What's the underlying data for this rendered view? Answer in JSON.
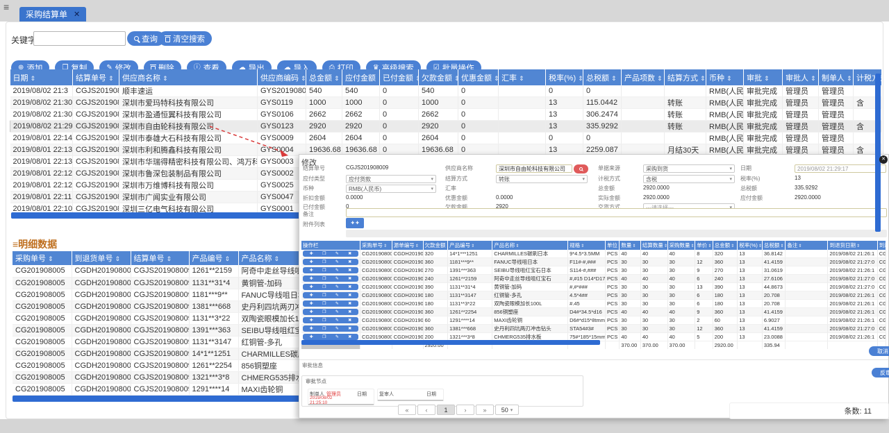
{
  "icons": {
    "sort": "⇕",
    "hamburger": "≡",
    "tab_close": "✕",
    "modal_close": "✕",
    "caret": "▾",
    "detail_prefix": "≡",
    "attach_plus": "✚ ✚",
    "op": [
      {
        "name": "row-add-icon",
        "glyph": "✚"
      },
      {
        "name": "row-copy-icon",
        "glyph": "❐"
      },
      {
        "name": "row-edit-icon",
        "glyph": "✎"
      },
      {
        "name": "row-delete-icon",
        "glyph": "✖"
      }
    ]
  },
  "colors": {
    "accent_blue": "#4a80d4",
    "header_blue": "#5186d3",
    "scrollbar_blue": "#2e6bd2",
    "title_orange": "#bf6f1f",
    "alert_red": "#e03c3c"
  },
  "tab": {
    "title": "采购结算单"
  },
  "search": {
    "keyword_label": "关键字",
    "keyword_value": "",
    "query_label": "查询",
    "clear_label": "清空搜索"
  },
  "toolbar": {
    "buttons": [
      {
        "name": "add-button",
        "icon": "plus-circle-icon",
        "glyph": "⊕",
        "label": "添加"
      },
      {
        "name": "copy-button",
        "icon": "copy-icon",
        "glyph": "❐",
        "label": "复制"
      },
      {
        "name": "edit-button",
        "icon": "pencil-icon",
        "glyph": "✎",
        "label": "修改"
      },
      {
        "name": "delete-button",
        "icon": "trash-icon",
        "glyph": "",
        "label": "删除"
      },
      {
        "name": "view-button",
        "icon": "info-icon",
        "glyph": "ⓘ",
        "label": "查看"
      },
      {
        "name": "export-button",
        "icon": "cloud-export-icon",
        "glyph": "☁",
        "label": "导出"
      },
      {
        "name": "import-button",
        "icon": "cloud-import-icon",
        "glyph": "☁",
        "label": "导入"
      },
      {
        "name": "print-button",
        "icon": "printer-icon",
        "glyph": "⎙",
        "label": "打印"
      },
      {
        "name": "advanced-search-button",
        "icon": "crown-icon",
        "glyph": "♛",
        "label": "高级搜索"
      },
      {
        "name": "batch-button",
        "icon": "circle-check-icon",
        "glyph": "☑",
        "label": "批量操作"
      }
    ]
  },
  "main_table": {
    "columns": [
      "日期",
      "结算单号",
      "供应商名称",
      "供应商编码",
      "总金额",
      "应付金额",
      "已付金额",
      "欠款金额",
      "优惠金额",
      "汇率",
      "税率(%)",
      "总税额",
      "产品项数",
      "结算方式",
      "币种",
      "审批",
      "审批人",
      "制单人",
      "计税方式"
    ],
    "rows": [
      [
        "2019/08/02 21:3",
        "CGJS201908012",
        "顺丰速运",
        "GYS20190800",
        "540",
        "540",
        "0",
        "540",
        "0",
        "",
        "0",
        "0",
        "",
        "",
        "RMB(人民币",
        "审批完成",
        "管理员",
        "管理员",
        ""
      ],
      [
        "2019/08/02 21:30",
        "CGJS201908011",
        "深圳市爱玛特科技有限公司",
        "GYS0119",
        "1000",
        "1000",
        "0",
        "1000",
        "0",
        "",
        "13",
        "115.0442",
        "",
        "转账",
        "RMB(人民币",
        "审批完成",
        "管理员",
        "管理员",
        "含"
      ],
      [
        "2019/08/02 21:30",
        "CGJS201908010",
        "深圳市盈通恒翼科技有限公司",
        "GYS0106",
        "2662",
        "2662",
        "0",
        "2662",
        "0",
        "",
        "13",
        "306.2474",
        "",
        "转账",
        "RMB(人民币",
        "审批完成",
        "管理员",
        "管理员",
        ""
      ],
      [
        "2019/08/02 21:29",
        "CGJS201908009",
        "深圳市自由轮科技有限公司",
        "GYS0123",
        "2920",
        "2920",
        "0",
        "2920",
        "0",
        "",
        "13",
        "335.9292",
        "",
        "转账",
        "RMB(人民币",
        "审批完成",
        "管理员",
        "管理员",
        "含"
      ],
      [
        "2019/08/01 22:14",
        "CGJS201908008",
        "深圳市泰雄大石科技有限公司",
        "GYS0009",
        "2604",
        "2604",
        "0",
        "2604",
        "0",
        "",
        "0",
        "0",
        "",
        "",
        "RMB(人民币",
        "审批完成",
        "管理员",
        "管理员",
        ""
      ],
      [
        "2019/08/01 22:13",
        "CGJS201908007",
        "深圳市利和腾鑫科技有限公司",
        "GYS0004",
        "19636.68",
        "19636.68",
        "0",
        "19636.68",
        "0",
        "",
        "13",
        "2259.087",
        "",
        "月结30天",
        "RMB(人民币",
        "审批完成",
        "管理员",
        "管理员",
        "含"
      ],
      [
        "2019/08/01 22:13",
        "CGJS201908006",
        "深圳市华瑞得精密科技有限公司、鸿万科",
        "GYS0003",
        "",
        "",
        "",
        "",
        "",
        "",
        "",
        "",
        "",
        "",
        "",
        "",
        "",
        "",
        ""
      ],
      [
        "2019/08/01 22:12",
        "CGJS201908005",
        "深圳市鲁深包装制品有限公司",
        "GYS0002",
        "",
        "",
        "",
        "",
        "",
        "",
        "",
        "",
        "",
        "",
        "",
        "",
        "",
        "",
        ""
      ],
      [
        "2019/08/01 22:12",
        "CGJS201908004",
        "深圳市万维博科技有限公司",
        "GYS0025",
        "",
        "",
        "",
        "",
        "",
        "",
        "",
        "",
        "",
        "",
        "",
        "",
        "",
        "",
        ""
      ],
      [
        "2019/08/01 22:11",
        "CGJS201908003",
        "深圳市广闻实业有限公司",
        "GYS0047",
        "",
        "",
        "",
        "",
        "",
        "",
        "",
        "",
        "",
        "",
        "",
        "",
        "",
        "",
        ""
      ],
      [
        "2019/08/01 22:10",
        "CGJS201908002",
        "深圳三亿电气科技有限公司",
        "GYS0001",
        "",
        "",
        "",
        "",
        "",
        "",
        "",
        "",
        "",
        "",
        "",
        "",
        "",
        "",
        ""
      ]
    ],
    "selected_row_index": 3
  },
  "detail_section": {
    "title": "明细数据",
    "columns": [
      "采购单号",
      "到退货单号",
      "结算单号",
      "产品编号",
      "产品名称"
    ],
    "rows": [
      [
        "CG201908005",
        "CGDH201908007",
        "CGJS201908009",
        "1261**2159",
        "阿奇中走丝导线咀红宝石"
      ],
      [
        "CG201908005",
        "CGDH201908007",
        "CGJS201908009",
        "1131**31*4",
        "黄铜管-加码"
      ],
      [
        "CG201908005",
        "CGDH201908007",
        "CGJS201908009",
        "1181***9**",
        "FANUC导线咀日本"
      ],
      [
        "CG201908005",
        "CGDH201908007",
        "CGJS201908009",
        "1381***668",
        "史丹利四坑两刃冲击钻头"
      ],
      [
        "CG201908005",
        "CGDH201908006",
        "CGJS201908009",
        "1131**3*22",
        "双陶瓷眼模加长100L"
      ],
      [
        "CG201908005",
        "CGDH201908006",
        "CGJS201908009",
        "1391***363",
        "SEIBU导线咀红宝石日本"
      ],
      [
        "CG201908005",
        "CGDH201908006",
        "CGJS201908009",
        "1131**3147",
        "红铜管-多孔"
      ],
      [
        "CG201908005",
        "CGDH201908006",
        "CGJS201908009",
        "14*1**1251",
        "CHARMILLES碳刷日本"
      ],
      [
        "CG201908005",
        "CGDH201908006",
        "CGJS201908009",
        "1261**2254",
        "856铜塑座"
      ],
      [
        "CG201908005",
        "CGDH201908006",
        "CGJS201908009",
        "1321***3*8",
        "CHMERG535排水板"
      ],
      [
        "CG201908005",
        "CGDH201908006",
        "CGJS201908009",
        "1291****14",
        "MAXI齿轮铜"
      ]
    ]
  },
  "modal": {
    "title": "修改",
    "fields": {
      "settle_no": {
        "label": "结算单号",
        "value": "CGJS201908009"
      },
      "supplier": {
        "label": "供应商名称",
        "value": "深圳市自由轮科技有限公司"
      },
      "source": {
        "label": "单据来源",
        "value": "采购到货"
      },
      "date": {
        "label": "日期",
        "value": "2019/08/02 21:29:17"
      },
      "pay_type": {
        "label": "应付类型",
        "value": "应付货款"
      },
      "settle_method": {
        "label": "结算方式",
        "value": "转账"
      },
      "tax_mode": {
        "label": "计税方式",
        "value": "含税"
      },
      "tax_rate": {
        "label": "税率(%)",
        "value": "13"
      },
      "currency": {
        "label": "币种",
        "value": "RMB(人民币)"
      },
      "ex_rate": {
        "label": "汇率",
        "value": ""
      },
      "total": {
        "label": "总金额",
        "value": "2920.0000"
      },
      "total_tax": {
        "label": "总税额",
        "value": "335.9292"
      },
      "discount": {
        "label": "折扣金额",
        "value": "0.0000"
      },
      "preferential": {
        "label": "优惠金额",
        "value": "0.0000"
      },
      "actual": {
        "label": "实际金额",
        "value": "2920.0000"
      },
      "payable": {
        "label": "应付金额",
        "value": "2920.0000"
      },
      "paid": {
        "label": "已付金额",
        "value": "0"
      },
      "debt": {
        "label": "欠款金额",
        "value": "2920"
      },
      "delivery": {
        "label": "交货方式",
        "value": "---请选择---"
      },
      "remark": {
        "label": "备注",
        "value": ""
      },
      "attach": {
        "label": "附件列表"
      }
    },
    "table": {
      "columns": [
        "操作栏",
        "采购单号",
        "源单编号",
        "欠款金额",
        "产品编号",
        "产品名称",
        "规格",
        "单位",
        "数量",
        "结算数量",
        "采购数量",
        "单价",
        "总金额",
        "税率(%)",
        "总税额",
        "备注",
        "到退货日期",
        "到退货单号"
      ],
      "rows": [
        [
          "CG201908005",
          "CGDH201908",
          "320",
          "14*1***1251",
          "CHARMILLES碳刷日本",
          "9*4.5*3.5MM",
          "PCS",
          "40",
          "40",
          "40",
          "8",
          "320",
          "13",
          "36.8142",
          "",
          "2019/08/02 21:26:1",
          "CGD"
        ],
        [
          "CG201908005",
          "CGDH201908",
          "360",
          "1181***9**",
          "FANUC导线咀日本",
          "F11#-#,###",
          "PCS",
          "30",
          "30",
          "30",
          "12",
          "360",
          "13",
          "41.4159",
          "",
          "2019/08/02 21:27:0",
          "CGD"
        ],
        [
          "CG201908005",
          "CGDH201908",
          "270",
          "1391***363",
          "SEIBU导线咀红宝石日本",
          "S114-#,###",
          "PCS",
          "30",
          "30",
          "30",
          "9",
          "270",
          "13",
          "31.0619",
          "",
          "2019/08/02 21:26:1",
          "CGD"
        ],
        [
          "CG201908005",
          "CGDH201908",
          "240",
          "1261**2159",
          "阿奇中走丝导线咀红宝石",
          "#,#15 D14*D17*17H",
          "PCS",
          "40",
          "40",
          "40",
          "6",
          "240",
          "13",
          "27.6106",
          "",
          "2019/08/02 21:27:0",
          "CGD"
        ],
        [
          "CG201908005",
          "CGDH201908",
          "390",
          "1131**31*4",
          "黄铜管-加码",
          "#,#*###",
          "PCS",
          "30",
          "30",
          "30",
          "13",
          "390",
          "13",
          "44.8673",
          "",
          "2019/08/02 21:27:0",
          "CGD"
        ],
        [
          "CG201908005",
          "CGDH201908",
          "180",
          "1131**3147",
          "红铜管-多孔",
          "4.5*4##",
          "PCS",
          "30",
          "30",
          "30",
          "6",
          "180",
          "13",
          "20.708",
          "",
          "2019/08/02 21:26:1",
          "CGD"
        ],
        [
          "CG201908005",
          "CGDH201908",
          "180",
          "1131**3*22",
          "双陶瓷眼模加长100L",
          "#.45",
          "PCS",
          "30",
          "30",
          "30",
          "6",
          "180",
          "13",
          "20.708",
          "",
          "2019/08/02 21:26:1",
          "CGD"
        ],
        [
          "CG201908005",
          "CGDH201908",
          "360",
          "1261**2254",
          "856铜塑座",
          "D4#*34.5*d16",
          "PCS",
          "40",
          "40",
          "40",
          "9",
          "360",
          "13",
          "41.4159",
          "",
          "2019/08/02 21:26:1",
          "CGD"
        ],
        [
          "CG201908005",
          "CGDH201908",
          "60",
          "1291****14",
          "MAXI齿轮铜",
          "D6#*d15*8tmm",
          "PCS",
          "30",
          "30",
          "30",
          "2",
          "60",
          "13",
          "6.9027",
          "",
          "2019/08/02 21:26:1",
          "CGD"
        ],
        [
          "CG201908005",
          "CGDH201908",
          "360",
          "1381***668",
          "史丹利四坑两刃冲击钻头",
          "STA54#3#",
          "PCS",
          "30",
          "30",
          "30",
          "12",
          "360",
          "13",
          "41.4159",
          "",
          "2019/08/02 21:27:0",
          "CGD"
        ],
        [
          "CG201908005",
          "CGDH201908",
          "200",
          "1321***3*8",
          "CHMERG535排水板",
          "75#*185*15mm",
          "PCS",
          "40",
          "40",
          "40",
          "5",
          "200",
          "13",
          "23.0088",
          "",
          "2019/08/02 21:26:1",
          "CGD"
        ]
      ],
      "totals": [
        "",
        "",
        "2920.00",
        "",
        "",
        "",
        "",
        "370.00",
        "370.00",
        "370.00",
        "",
        "2920.00",
        "",
        "335.94",
        "",
        "",
        ""
      ]
    },
    "approval": {
      "section_label": "审批信息",
      "node_label": "审批节点",
      "maker_label": "制单人",
      "maker_name": "管理员",
      "maker_date": "2019/08/02 21:25:10",
      "maker_date_label": "日期",
      "reviewer_label": "复审人",
      "reviewer_date_label": "日期"
    },
    "buttons": {
      "cancel": "取消",
      "recheck": "反审"
    }
  },
  "pagination": {
    "first": "«",
    "prev": "‹",
    "page": "1",
    "next": "›",
    "last": "»",
    "size": "50"
  },
  "footer": {
    "count_text": "条数: 11"
  }
}
